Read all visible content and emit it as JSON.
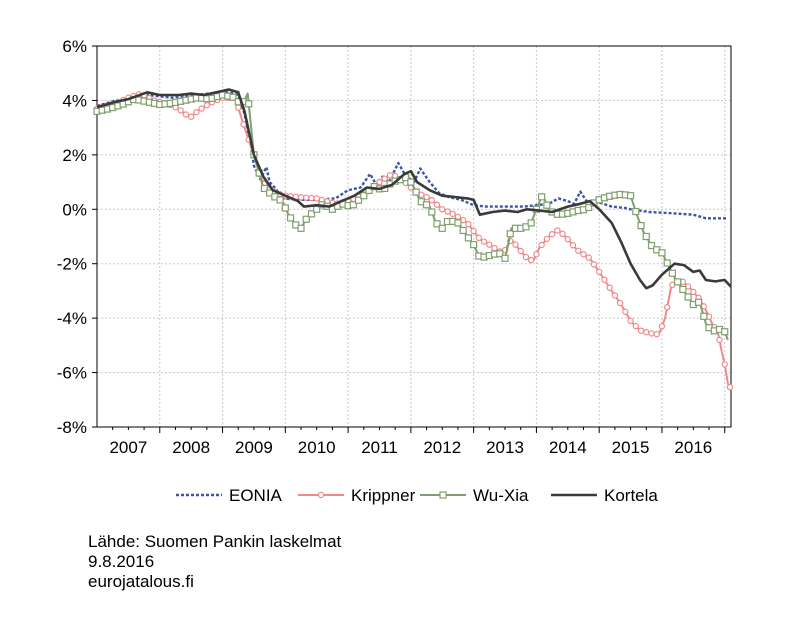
{
  "chart_data": {
    "type": "line",
    "title": "",
    "xlabel": "",
    "ylabel": "",
    "x_range": [
      2006.5,
      2016.6
    ],
    "ylim": [
      -8,
      6
    ],
    "y_ticks": [
      6,
      4,
      2,
      0,
      -2,
      -4,
      -6,
      -8
    ],
    "y_tick_labels": [
      "6%",
      "4%",
      "2%",
      "0%",
      "-2%",
      "-4%",
      "-6%",
      "-8%"
    ],
    "x_tick_labels": [
      "2007",
      "2008",
      "2009",
      "2010",
      "2011",
      "2012",
      "2013",
      "2014",
      "2015",
      "2016"
    ],
    "x_tick_centers": [
      2007,
      2008,
      2009,
      2010,
      2011,
      2012,
      2013,
      2014,
      2015,
      2016
    ],
    "grid": true,
    "legend_position": "bottom",
    "series": [
      {
        "name": "EONIA",
        "color": "#3b55a8",
        "style": "dotted",
        "marker": "none",
        "points": [
          [
            2006.5,
            3.8
          ],
          [
            2006.8,
            4.0
          ],
          [
            2007.0,
            4.05
          ],
          [
            2007.3,
            4.2
          ],
          [
            2007.5,
            4.15
          ],
          [
            2007.7,
            4.1
          ],
          [
            2008.0,
            4.2
          ],
          [
            2008.3,
            4.25
          ],
          [
            2008.6,
            4.3
          ],
          [
            2008.75,
            4.2
          ],
          [
            2008.85,
            3.5
          ],
          [
            2008.95,
            2.4
          ],
          [
            2009.0,
            1.6
          ],
          [
            2009.1,
            1.1
          ],
          [
            2009.2,
            1.55
          ],
          [
            2009.25,
            1.0
          ],
          [
            2009.35,
            0.75
          ],
          [
            2009.45,
            0.4
          ],
          [
            2009.7,
            0.35
          ],
          [
            2010.0,
            0.35
          ],
          [
            2010.3,
            0.4
          ],
          [
            2010.5,
            0.7
          ],
          [
            2010.7,
            0.8
          ],
          [
            2010.85,
            1.3
          ],
          [
            2010.95,
            0.9
          ],
          [
            2011.05,
            1.2
          ],
          [
            2011.15,
            1.0
          ],
          [
            2011.3,
            1.7
          ],
          [
            2011.4,
            1.3
          ],
          [
            2011.55,
            1.0
          ],
          [
            2011.65,
            1.5
          ],
          [
            2011.8,
            1.0
          ],
          [
            2011.95,
            0.6
          ],
          [
            2012.1,
            0.45
          ],
          [
            2012.3,
            0.35
          ],
          [
            2012.5,
            0.15
          ],
          [
            2012.7,
            0.1
          ],
          [
            2013.0,
            0.1
          ],
          [
            2013.3,
            0.1
          ],
          [
            2013.5,
            0.15
          ],
          [
            2013.7,
            0.2
          ],
          [
            2013.85,
            0.4
          ],
          [
            2014.0,
            0.3
          ],
          [
            2014.1,
            0.2
          ],
          [
            2014.2,
            0.65
          ],
          [
            2014.3,
            0.3
          ],
          [
            2014.5,
            0.25
          ],
          [
            2014.7,
            0.1
          ],
          [
            2014.9,
            0.05
          ],
          [
            2015.0,
            0.0
          ],
          [
            2015.3,
            -0.1
          ],
          [
            2015.7,
            -0.15
          ],
          [
            2016.0,
            -0.2
          ],
          [
            2016.2,
            -0.33
          ],
          [
            2016.55,
            -0.33
          ]
        ]
      },
      {
        "name": "Krippner",
        "color": "#f08a8a",
        "style": "solid",
        "marker": "circle",
        "points": [
          [
            2006.5,
            3.7
          ],
          [
            2006.8,
            3.9
          ],
          [
            2007.0,
            4.1
          ],
          [
            2007.2,
            4.25
          ],
          [
            2007.4,
            4.0
          ],
          [
            2007.6,
            3.9
          ],
          [
            2007.8,
            3.7
          ],
          [
            2007.9,
            3.5
          ],
          [
            2008.0,
            3.4
          ],
          [
            2008.1,
            3.6
          ],
          [
            2008.3,
            3.9
          ],
          [
            2008.5,
            4.1
          ],
          [
            2008.7,
            4.1
          ],
          [
            2008.85,
            3.0
          ],
          [
            2009.0,
            2.0
          ],
          [
            2009.1,
            1.2
          ],
          [
            2009.2,
            0.8
          ],
          [
            2009.35,
            0.6
          ],
          [
            2009.5,
            0.5
          ],
          [
            2009.7,
            0.45
          ],
          [
            2010.0,
            0.4
          ],
          [
            2010.3,
            0.2
          ],
          [
            2010.5,
            0.3
          ],
          [
            2010.8,
            0.6
          ],
          [
            2011.0,
            1.0
          ],
          [
            2011.2,
            1.3
          ],
          [
            2011.4,
            1.0
          ],
          [
            2011.6,
            0.6
          ],
          [
            2011.8,
            0.4
          ],
          [
            2012.0,
            0.0
          ],
          [
            2012.2,
            -0.2
          ],
          [
            2012.4,
            -0.5
          ],
          [
            2012.6,
            -1.1
          ],
          [
            2012.75,
            -1.3
          ],
          [
            2012.95,
            -1.6
          ],
          [
            2013.0,
            -1.5
          ],
          [
            2013.1,
            -1.1
          ],
          [
            2013.2,
            -1.4
          ],
          [
            2013.35,
            -1.8
          ],
          [
            2013.45,
            -1.9
          ],
          [
            2013.55,
            -1.4
          ],
          [
            2013.7,
            -1.0
          ],
          [
            2013.85,
            -0.75
          ],
          [
            2014.0,
            -1.1
          ],
          [
            2014.15,
            -1.5
          ],
          [
            2014.35,
            -1.8
          ],
          [
            2014.5,
            -2.3
          ],
          [
            2014.7,
            -3.0
          ],
          [
            2014.85,
            -3.5
          ],
          [
            2015.0,
            -4.1
          ],
          [
            2015.15,
            -4.45
          ],
          [
            2015.3,
            -4.55
          ],
          [
            2015.45,
            -4.6
          ],
          [
            2015.55,
            -4.0
          ],
          [
            2015.65,
            -2.8
          ],
          [
            2015.8,
            -2.6
          ],
          [
            2015.95,
            -2.9
          ],
          [
            2016.1,
            -3.3
          ],
          [
            2016.2,
            -3.7
          ],
          [
            2016.3,
            -4.2
          ],
          [
            2016.4,
            -4.6
          ],
          [
            2016.45,
            -5.2
          ],
          [
            2016.5,
            -5.7
          ],
          [
            2016.55,
            -6.4
          ],
          [
            2016.6,
            -6.6
          ]
        ]
      },
      {
        "name": "Wu-Xia",
        "color": "#7f9f6e",
        "style": "solid",
        "marker": "square",
        "points": [
          [
            2006.5,
            3.6
          ],
          [
            2006.7,
            3.7
          ],
          [
            2006.9,
            3.85
          ],
          [
            2007.1,
            4.05
          ],
          [
            2007.3,
            3.95
          ],
          [
            2007.5,
            3.85
          ],
          [
            2007.7,
            3.9
          ],
          [
            2007.9,
            4.0
          ],
          [
            2008.1,
            4.1
          ],
          [
            2008.3,
            4.05
          ],
          [
            2008.5,
            4.2
          ],
          [
            2008.7,
            4.1
          ],
          [
            2008.8,
            3.8
          ],
          [
            2008.9,
            4.25
          ],
          [
            2009.0,
            2.0
          ],
          [
            2009.15,
            0.8
          ],
          [
            2009.3,
            0.5
          ],
          [
            2009.45,
            0.3
          ],
          [
            2009.55,
            -0.2
          ],
          [
            2009.65,
            -0.55
          ],
          [
            2009.75,
            -0.7
          ],
          [
            2009.85,
            -0.3
          ],
          [
            2010.0,
            0.0
          ],
          [
            2010.1,
            0.2
          ],
          [
            2010.25,
            0.0
          ],
          [
            2010.4,
            0.2
          ],
          [
            2010.55,
            0.1
          ],
          [
            2010.75,
            0.5
          ],
          [
            2010.9,
            0.85
          ],
          [
            2011.05,
            0.7
          ],
          [
            2011.2,
            1.0
          ],
          [
            2011.35,
            1.1
          ],
          [
            2011.45,
            1.2
          ],
          [
            2011.55,
            0.8
          ],
          [
            2011.65,
            0.3
          ],
          [
            2011.8,
            0.1
          ],
          [
            2011.9,
            -0.5
          ],
          [
            2012.0,
            -0.7
          ],
          [
            2012.1,
            -0.4
          ],
          [
            2012.25,
            -0.5
          ],
          [
            2012.4,
            -1.0
          ],
          [
            2012.5,
            -1.3
          ],
          [
            2012.6,
            -1.8
          ],
          [
            2012.75,
            -1.7
          ],
          [
            2012.9,
            -1.6
          ],
          [
            2013.0,
            -1.8
          ],
          [
            2013.05,
            -1.3
          ],
          [
            2013.1,
            -0.7
          ],
          [
            2013.25,
            -0.7
          ],
          [
            2013.4,
            -0.6
          ],
          [
            2013.5,
            0.0
          ],
          [
            2013.6,
            0.55
          ],
          [
            2013.7,
            -0.05
          ],
          [
            2013.85,
            -0.2
          ],
          [
            2014.0,
            -0.15
          ],
          [
            2014.15,
            -0.05
          ],
          [
            2014.3,
            0.0
          ],
          [
            2014.45,
            0.3
          ],
          [
            2014.55,
            0.4
          ],
          [
            2014.7,
            0.5
          ],
          [
            2014.85,
            0.55
          ],
          [
            2015.0,
            0.5
          ],
          [
            2015.1,
            -0.2
          ],
          [
            2015.2,
            -0.8
          ],
          [
            2015.35,
            -1.4
          ],
          [
            2015.5,
            -1.6
          ],
          [
            2015.7,
            -2.5
          ],
          [
            2015.85,
            -3.0
          ],
          [
            2016.0,
            -3.5
          ],
          [
            2016.1,
            -3.4
          ],
          [
            2016.2,
            -4.2
          ],
          [
            2016.3,
            -4.5
          ],
          [
            2016.4,
            -4.4
          ],
          [
            2016.5,
            -4.5
          ],
          [
            2016.55,
            -4.8
          ]
        ]
      },
      {
        "name": "Kortela",
        "color": "#3a3a3a",
        "style": "solid",
        "marker": "none",
        "points": [
          [
            2006.5,
            3.75
          ],
          [
            2006.8,
            3.95
          ],
          [
            2007.0,
            4.05
          ],
          [
            2007.3,
            4.3
          ],
          [
            2007.5,
            4.2
          ],
          [
            2007.8,
            4.2
          ],
          [
            2008.0,
            4.25
          ],
          [
            2008.2,
            4.2
          ],
          [
            2008.4,
            4.3
          ],
          [
            2008.6,
            4.4
          ],
          [
            2008.75,
            4.3
          ],
          [
            2008.85,
            3.6
          ],
          [
            2009.0,
            2.0
          ],
          [
            2009.15,
            1.2
          ],
          [
            2009.3,
            0.7
          ],
          [
            2009.5,
            0.5
          ],
          [
            2009.7,
            0.3
          ],
          [
            2009.8,
            0.1
          ],
          [
            2010.0,
            0.15
          ],
          [
            2010.2,
            0.1
          ],
          [
            2010.4,
            0.3
          ],
          [
            2010.6,
            0.5
          ],
          [
            2010.8,
            0.8
          ],
          [
            2011.0,
            0.75
          ],
          [
            2011.2,
            0.9
          ],
          [
            2011.4,
            1.3
          ],
          [
            2011.5,
            1.4
          ],
          [
            2011.6,
            1.0
          ],
          [
            2011.8,
            0.7
          ],
          [
            2012.0,
            0.5
          ],
          [
            2012.2,
            0.45
          ],
          [
            2012.4,
            0.4
          ],
          [
            2012.5,
            0.35
          ],
          [
            2012.6,
            -0.2
          ],
          [
            2012.8,
            -0.1
          ],
          [
            2013.0,
            -0.05
          ],
          [
            2013.2,
            -0.1
          ],
          [
            2013.35,
            0.0
          ],
          [
            2013.55,
            -0.05
          ],
          [
            2013.75,
            -0.1
          ],
          [
            2014.0,
            0.1
          ],
          [
            2014.2,
            0.2
          ],
          [
            2014.35,
            0.3
          ],
          [
            2014.5,
            0.0
          ],
          [
            2014.7,
            -0.5
          ],
          [
            2014.85,
            -1.2
          ],
          [
            2015.0,
            -2.0
          ],
          [
            2015.15,
            -2.6
          ],
          [
            2015.25,
            -2.9
          ],
          [
            2015.35,
            -2.8
          ],
          [
            2015.5,
            -2.4
          ],
          [
            2015.7,
            -2.0
          ],
          [
            2015.85,
            -2.05
          ],
          [
            2016.0,
            -2.3
          ],
          [
            2016.1,
            -2.25
          ],
          [
            2016.2,
            -2.6
          ],
          [
            2016.35,
            -2.65
          ],
          [
            2016.5,
            -2.6
          ],
          [
            2016.6,
            -2.85
          ]
        ]
      }
    ]
  },
  "footer": {
    "source": "Lähde: Suomen Pankin laskelmat",
    "date": "9.8.2016",
    "site": "eurojatalous.fi"
  }
}
